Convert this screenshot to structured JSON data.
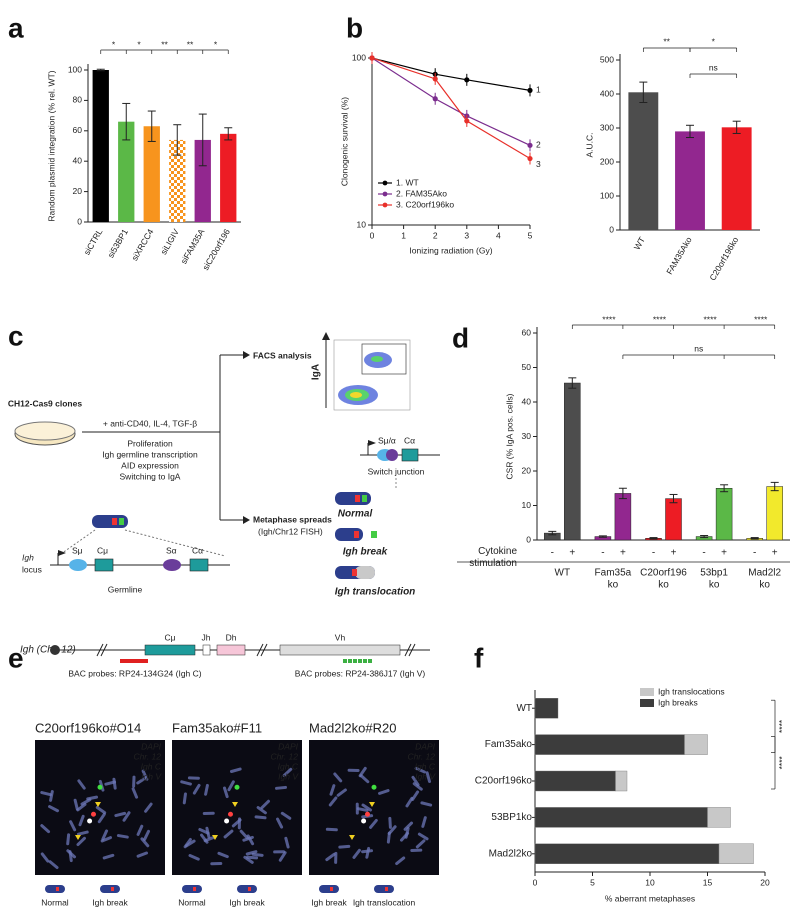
{
  "panel_labels": [
    "a",
    "b",
    "c",
    "d",
    "e",
    "f"
  ],
  "chart_data": [
    {
      "type": "bar",
      "ylabel": "Random plasmid integration (% rel. WT)",
      "categories": [
        "siCTRL",
        "si53BP1",
        "siXRCC4",
        "siLIGIV",
        "siFAM35A",
        "siC20orf196"
      ],
      "values": [
        100,
        66,
        63,
        54,
        54,
        58
      ],
      "errors": [
        0.5,
        12,
        10,
        10,
        17,
        4
      ],
      "colors": [
        "#000000",
        "#5bb847",
        "#f7941d",
        "#f7941d",
        "#92278f",
        "#ed1c24"
      ],
      "patterns": [
        "solid",
        "solid",
        "solid",
        "checkered",
        "solid",
        "solid"
      ],
      "ylim": [
        0,
        100
      ],
      "yticks": [
        0,
        20,
        40,
        60,
        80,
        100
      ],
      "significance": [
        "*",
        "*",
        "**",
        "**",
        "*"
      ]
    },
    {
      "type": "line",
      "xlabel": "Ionizing radiation (Gy)",
      "ylabel": "Clonogenic survival (%)",
      "x": [
        0,
        2,
        3,
        5
      ],
      "series": [
        {
          "name": "1. WT",
          "color": "#000000",
          "values": [
            100,
            80,
            74,
            64
          ],
          "end_label": "1"
        },
        {
          "name": "2. FAM35Ako",
          "color": "#7b2d8e",
          "values": [
            100,
            57,
            45,
            30
          ],
          "end_label": "2"
        },
        {
          "name": "3. C20orf196ko",
          "color": "#e8302a",
          "values": [
            100,
            75,
            42,
            25
          ],
          "end_label": "3"
        }
      ],
      "xlim": [
        0,
        5
      ],
      "xticks": [
        0,
        1,
        2,
        3,
        4,
        5
      ],
      "ylim": [
        10,
        100
      ],
      "yticks": [
        10,
        100
      ],
      "log_y": true,
      "legend": "lower-left"
    },
    {
      "type": "bar",
      "ylabel": "A.U.C.",
      "categories": [
        "WT",
        "FAM35Ako",
        "C20orf196ko"
      ],
      "values": [
        405,
        290,
        302
      ],
      "errors": [
        30,
        18,
        18
      ],
      "colors": [
        "#4d4d4d",
        "#92278f",
        "#ed1c24"
      ],
      "patterns": [
        "solid",
        "solid",
        "solid"
      ],
      "ylim": [
        0,
        500
      ],
      "yticks": [
        0,
        100,
        200,
        300,
        400,
        500
      ],
      "significance": [
        "**",
        "*",
        "ns"
      ]
    },
    {
      "type": "grouped_bar",
      "ylabel": "CSR (% IgA pos. cells)",
      "xlabel": "Cytokine stimulation",
      "groups": [
        [
          "WT"
        ],
        [
          "Fam35a",
          "ko"
        ],
        [
          "C20orf196",
          "ko"
        ],
        [
          "53bp1",
          "ko"
        ],
        [
          "Mad2l2",
          "ko"
        ]
      ],
      "categories": [
        "-",
        "+",
        "-",
        "+",
        "-",
        "+",
        "-",
        "+",
        "-",
        "+"
      ],
      "values": [
        2,
        45.5,
        1,
        13.5,
        0.5,
        12,
        1,
        15,
        0.5,
        15.5
      ],
      "errors": [
        0.5,
        1.5,
        0.2,
        1.5,
        0.2,
        1.2,
        0.3,
        1,
        0.2,
        1.2
      ],
      "colors": [
        "#4d4d4d",
        "#92278f",
        "#ed1c24",
        "#5bb847",
        "#f2e92c"
      ],
      "ylim": [
        0,
        60
      ],
      "yticks": [
        0,
        10,
        20,
        30,
        40,
        50,
        60
      ],
      "significance": [
        "****",
        "****",
        "****",
        "****",
        "ns"
      ]
    },
    {
      "type": "stacked_barh",
      "xlabel": "% aberrant metaphases",
      "categories": [
        "WT",
        "Fam35ako",
        "C20orf196ko",
        "53BP1ko",
        "Mad2l2ko"
      ],
      "series": [
        {
          "name": "Igh breaks",
          "color": "#3c3c3c",
          "values": [
            2,
            13,
            7,
            15,
            16
          ]
        },
        {
          "name": "Igh translocations",
          "color": "#c8c8c8",
          "values": [
            0,
            2,
            1,
            2,
            3
          ]
        }
      ],
      "xlim": [
        0,
        20
      ],
      "xticks": [
        0,
        5,
        10,
        15,
        20
      ],
      "legend": "upper-right",
      "significance": [
        "****",
        "****"
      ]
    }
  ],
  "figure_c": {
    "dish_label": "CH12-Cas9 clones",
    "treatment": "+ anti-CD40, IL-4, TGF-β",
    "steps": [
      "Proliferation",
      "Igh germline transcription",
      "AID expression",
      "Switching to IgA"
    ],
    "facs": "FACS analysis",
    "facs_axis": "IgA",
    "metaphase": "Metaphase spreads",
    "metaphase_sub": "(Igh/Chr12 FISH)",
    "switch_junction": "Switch junction",
    "outcomes": [
      "Normal",
      "Igh break",
      "Igh translocation"
    ],
    "locus": [
      "Igh",
      "locus"
    ],
    "germline": "Germline",
    "segments": [
      "Sμ",
      "Cμ",
      "Sα",
      "Cα"
    ],
    "junction_segments": [
      "Sμ/α",
      "Cα"
    ]
  },
  "figure_e": {
    "locus_label": "Igh (Chr. 12)",
    "segments": [
      "Cμ",
      "Jh",
      "Dh",
      "Vh"
    ],
    "probes": [
      "BAC probes: RP24-134G24 (Igh C)",
      "BAC probes: RP24-386J17 (Igh V)"
    ],
    "images": [
      {
        "title": "C20orf196ko#O14",
        "captions": [
          "Normal",
          "Igh break"
        ]
      },
      {
        "title": "Fam35ako#F11",
        "captions": [
          "Normal",
          "Igh break"
        ]
      },
      {
        "title": "Mad2l2ko#R20",
        "captions": [
          "Igh break",
          "Igh translocation"
        ]
      }
    ],
    "channels": [
      {
        "name": "DAPI",
        "color": "#8fa0ff"
      },
      {
        "name": "Chr. 12",
        "color": "#ffffff"
      },
      {
        "name": "Igh C",
        "color": "#ff3030"
      },
      {
        "name": "Igh V",
        "color": "#40e040"
      }
    ]
  }
}
